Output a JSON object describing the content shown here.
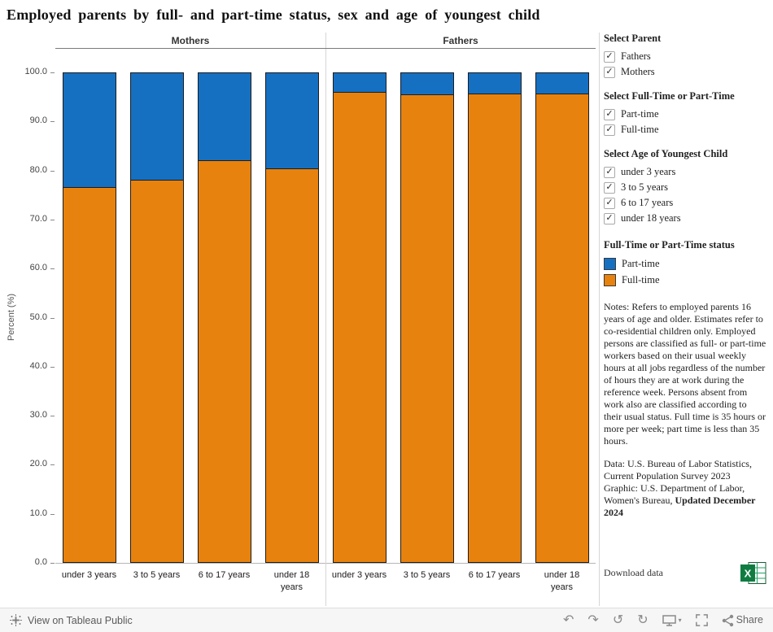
{
  "title": "Employed parents by full- and part-time status, sex and age of youngest child",
  "chart_data": {
    "type": "bar",
    "stacked": true,
    "ylabel": "Percent (%)",
    "ylim": [
      0,
      100
    ],
    "ytick_step": 10,
    "grid": false,
    "categories": [
      "under 3 years",
      "3 to 5 years",
      "6 to 17 years",
      "under 18 years"
    ],
    "colors": {
      "Full-time": "#e8820e",
      "Part-time": "#1670c2"
    },
    "panels": [
      {
        "label": "Mothers",
        "series": [
          {
            "name": "Full-time",
            "values": [
              76.5,
              78.0,
              82.0,
              80.3
            ]
          },
          {
            "name": "Part-time",
            "values": [
              23.5,
              22.0,
              18.0,
              19.7
            ]
          }
        ]
      },
      {
        "label": "Fathers",
        "series": [
          {
            "name": "Full-time",
            "values": [
              95.8,
              95.4,
              95.5,
              95.6
            ]
          },
          {
            "name": "Part-time",
            "values": [
              4.2,
              4.6,
              4.5,
              4.4
            ]
          }
        ]
      }
    ]
  },
  "filters": [
    {
      "title": "Select Parent",
      "options": [
        {
          "label": "Fathers",
          "checked": true
        },
        {
          "label": "Mothers",
          "checked": true
        }
      ]
    },
    {
      "title": "Select Full-Time or Part-Time",
      "options": [
        {
          "label": "Part-time",
          "checked": true
        },
        {
          "label": "Full-time",
          "checked": true
        }
      ]
    },
    {
      "title": "Select Age of Youngest Child",
      "options": [
        {
          "label": "under 3 years",
          "checked": true
        },
        {
          "label": "3 to 5 years",
          "checked": true
        },
        {
          "label": "6 to 17 years",
          "checked": true
        },
        {
          "label": "under 18 years",
          "checked": true
        }
      ]
    }
  ],
  "legend": {
    "title": "Full-Time or Part-Time status",
    "items": [
      {
        "label": "Part-time",
        "color": "#1670c2"
      },
      {
        "label": "Full-time",
        "color": "#e8820e"
      }
    ]
  },
  "notes": "Notes: Refers to employed parents 16 years of age and older. Estimates refer to co-residential children only. Employed persons are classified as full- or part-time workers based on their usual weekly hours at all jobs regardless of the number of hours they are at work during the reference week. Persons absent from work also are classified according to their usual status. Full time is 35 hours or more per week; part time is less than 35 hours.",
  "source": {
    "line1": "Data: U.S. Bureau of Labor Statistics, Current Population Survey 2023",
    "line2_prefix": "Graphic: U.S. Department of Labor, Women's Bureau, ",
    "line2_bold": "Updated December 2024"
  },
  "download_label": "Download data",
  "footer": {
    "view_label": "View on Tableau Public",
    "share_label": "Share",
    "icons": [
      "undo",
      "redo",
      "reset",
      "refresh",
      "device",
      "fullscreen",
      "share"
    ]
  }
}
